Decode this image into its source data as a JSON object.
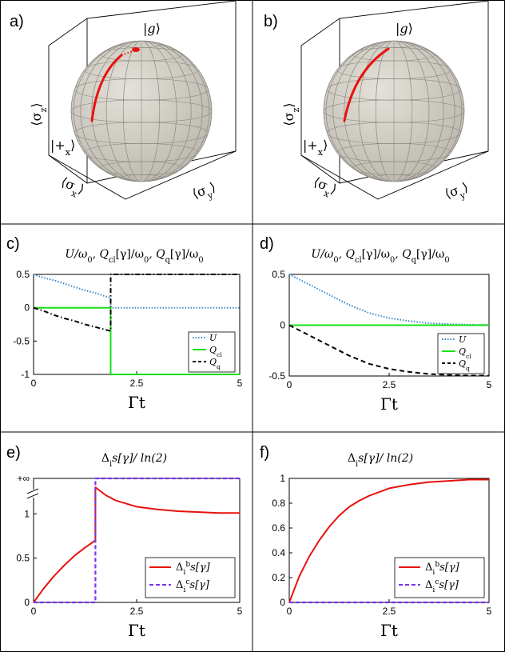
{
  "panels": {
    "a": {
      "label": "a)"
    },
    "b": {
      "label": "b)"
    }
  },
  "bloch": {
    "ket_g": "|g⟩",
    "ket_plus_x": "|+x⟩",
    "axis_x": "⟨σx⟩",
    "axis_y": "⟨σy⟩",
    "axis_z": "⟨σz⟩",
    "sphere_color": "#d4d1c8",
    "trajectory_color": "#e8120c"
  },
  "colors": {
    "U": "#3a86c9",
    "Qcl": "#19e019",
    "Qq": "#000000",
    "red": "#e8120c",
    "purple": "#7a35f0"
  },
  "chart_data": [
    {
      "id": "c",
      "label": "c)",
      "type": "line",
      "title": "U/ω0, Qcl[γ]/ω0, Qq[γ]/ω0",
      "xlabel": "Γt",
      "xlim": [
        0,
        5
      ],
      "ylim": [
        -1,
        0.5
      ],
      "xticks": [
        "0",
        "2.5",
        "5"
      ],
      "xtick_values": [
        0,
        2.5,
        5
      ],
      "yticks": [
        "0.5",
        "0",
        "-0.5",
        "-1"
      ],
      "ytick_values": [
        0.5,
        0,
        -0.5,
        -1
      ],
      "legend": [
        "U",
        "Qcl",
        "Qq"
      ],
      "legend_position": "lower-right",
      "series": [
        {
          "name": "U",
          "style": "dotted",
          "x": [
            0,
            0.25,
            0.5,
            0.75,
            1.0,
            1.25,
            1.5,
            1.75,
            1.87,
            1.87,
            2.5,
            3,
            3.5,
            4,
            4.5,
            5
          ],
          "y": [
            0.5,
            0.45,
            0.41,
            0.36,
            0.31,
            0.26,
            0.22,
            0.17,
            0.15,
            0,
            0,
            0,
            0,
            0,
            0,
            0
          ]
        },
        {
          "name": "Qcl",
          "style": "solid",
          "x": [
            0,
            1.87,
            1.87,
            5
          ],
          "y": [
            0,
            0,
            -1,
            -1
          ]
        },
        {
          "name": "Qq",
          "style": "dashdot",
          "x": [
            0,
            0.25,
            0.5,
            0.75,
            1.0,
            1.25,
            1.5,
            1.75,
            1.87,
            1.87,
            5
          ],
          "y": [
            0,
            -0.05,
            -0.11,
            -0.16,
            -0.2,
            -0.25,
            -0.29,
            -0.33,
            -0.35,
            0.5,
            0.5
          ]
        }
      ]
    },
    {
      "id": "d",
      "label": "d)",
      "type": "line",
      "title": "U/ω0, Qcl[γ]/ω0, Qq[γ]/ω0",
      "xlabel": "Γt",
      "xlim": [
        0,
        5
      ],
      "ylim": [
        -0.5,
        0.5
      ],
      "xticks": [
        "0",
        "2.5",
        "5"
      ],
      "xtick_values": [
        0,
        2.5,
        5
      ],
      "yticks": [
        "0.5",
        "0",
        "-0.5"
      ],
      "ytick_values": [
        0.5,
        0,
        -0.5
      ],
      "legend": [
        "U",
        "Qcl",
        "Qq"
      ],
      "legend_position": "lower-right",
      "series": [
        {
          "name": "U",
          "style": "dotted",
          "x": [
            0,
            0.5,
            1,
            1.5,
            2,
            2.5,
            3,
            3.5,
            4,
            4.5,
            5
          ],
          "y": [
            0.5,
            0.4,
            0.3,
            0.2,
            0.12,
            0.07,
            0.04,
            0.02,
            0.01,
            0.005,
            0.003
          ]
        },
        {
          "name": "Qcl",
          "style": "solid",
          "x": [
            0,
            5
          ],
          "y": [
            0,
            0
          ]
        },
        {
          "name": "Qq",
          "style": "dashed",
          "x": [
            0,
            0.5,
            1,
            1.5,
            2,
            2.5,
            3,
            3.5,
            4,
            4.5,
            5
          ],
          "y": [
            0,
            -0.1,
            -0.2,
            -0.3,
            -0.38,
            -0.43,
            -0.46,
            -0.48,
            -0.49,
            -0.495,
            -0.497
          ]
        }
      ]
    },
    {
      "id": "e",
      "label": "e)",
      "type": "line",
      "title": "Δis[γ]/ln(2)",
      "xlabel": "Γt",
      "xlim": [
        0,
        5
      ],
      "ylim": [
        0,
        1.4
      ],
      "xticks": [
        "0",
        "2.5",
        "5"
      ],
      "xtick_values": [
        0,
        2.5,
        5
      ],
      "yticks": [
        "+∞",
        "1",
        "0.5",
        "0"
      ],
      "ytick_values": [
        1.4,
        1,
        0.5,
        0
      ],
      "axis_break": true,
      "legend": [
        "Δibs[γ]",
        "Δics[γ]"
      ],
      "legend_position": "lower-right",
      "series": [
        {
          "name": "Δibs[γ]",
          "style": "solid",
          "x": [
            0,
            0.25,
            0.5,
            0.75,
            1.0,
            1.25,
            1.5,
            1.5,
            1.75,
            2,
            2.5,
            3,
            3.5,
            4,
            4.5,
            5
          ],
          "y": [
            0,
            0.16,
            0.3,
            0.42,
            0.53,
            0.62,
            0.7,
            1.3,
            1.21,
            1.15,
            1.08,
            1.05,
            1.03,
            1.02,
            1.01,
            1.01
          ]
        },
        {
          "name": "Δics[γ]",
          "style": "dashed",
          "x": [
            0,
            1.5,
            1.5,
            5
          ],
          "y": [
            0,
            0,
            1.4,
            1.4
          ]
        }
      ]
    },
    {
      "id": "f",
      "label": "f)",
      "type": "line",
      "title": "Δis[γ]/ln(2)",
      "xlabel": "Γt",
      "xlim": [
        0,
        5
      ],
      "ylim": [
        0,
        1
      ],
      "xticks": [
        "0",
        "2.5",
        "5"
      ],
      "xtick_values": [
        0,
        2.5,
        5
      ],
      "yticks": [
        "1",
        "0.8",
        "0.6",
        "0.4",
        "0.2",
        "0"
      ],
      "ytick_values": [
        1,
        0.8,
        0.6,
        0.4,
        0.2,
        0
      ],
      "legend": [
        "Δibs[γ]",
        "Δics[γ]"
      ],
      "legend_position": "lower-right",
      "series": [
        {
          "name": "Δibs[γ]",
          "style": "solid",
          "x": [
            0,
            0.25,
            0.5,
            0.75,
            1,
            1.25,
            1.5,
            1.75,
            2,
            2.5,
            3,
            3.5,
            4,
            4.5,
            5
          ],
          "y": [
            0,
            0.21,
            0.37,
            0.5,
            0.61,
            0.7,
            0.77,
            0.82,
            0.86,
            0.92,
            0.95,
            0.97,
            0.98,
            0.99,
            0.99
          ]
        },
        {
          "name": "Δics[γ]",
          "style": "dashed",
          "x": [
            0,
            5
          ],
          "y": [
            0,
            0
          ]
        }
      ]
    }
  ]
}
